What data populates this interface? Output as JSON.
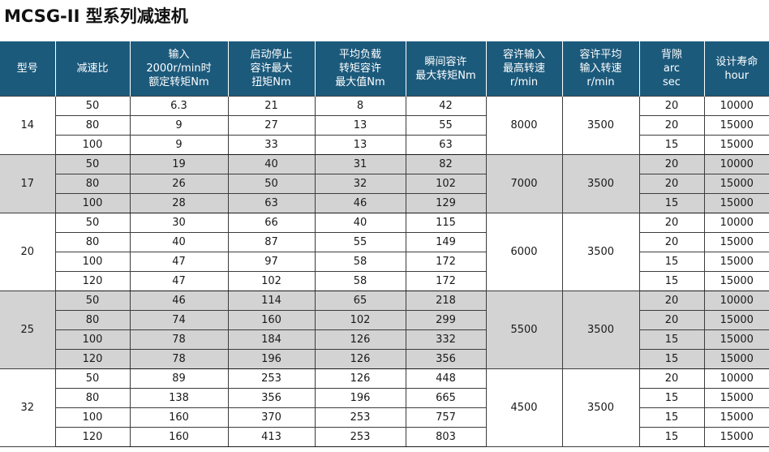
{
  "title": "MCSG-II 型系列减速机",
  "headers": [
    [
      "型号"
    ],
    [
      "减速比"
    ],
    [
      "输入",
      "2000r/min时",
      "额定转矩Nm"
    ],
    [
      "启动停止",
      "容许最大",
      "扭矩Nm"
    ],
    [
      "平均负载",
      "转矩容许",
      "最大值Nm"
    ],
    [
      "瞬间容许",
      "最大转矩Nm"
    ],
    [
      "容许输入",
      "最高转速",
      "r/min"
    ],
    [
      "容许平均",
      "输入转速",
      "r/min"
    ],
    [
      "背隙",
      "arc",
      "sec"
    ],
    [
      "设计寿命",
      "hour"
    ]
  ],
  "groups": [
    {
      "model": "14",
      "max_speed": "8000",
      "avg_speed": "3500",
      "shaded": false,
      "rows": [
        {
          "ratio": "50",
          "rated": "6.3",
          "start_stop": "21",
          "avg_load": "8",
          "instant": "42",
          "backlash": "20",
          "life": "10000"
        },
        {
          "ratio": "80",
          "rated": "9",
          "start_stop": "27",
          "avg_load": "13",
          "instant": "55",
          "backlash": "20",
          "life": "15000"
        },
        {
          "ratio": "100",
          "rated": "9",
          "start_stop": "33",
          "avg_load": "13",
          "instant": "63",
          "backlash": "15",
          "life": "15000"
        }
      ]
    },
    {
      "model": "17",
      "max_speed": "7000",
      "avg_speed": "3500",
      "shaded": true,
      "rows": [
        {
          "ratio": "50",
          "rated": "19",
          "start_stop": "40",
          "avg_load": "31",
          "instant": "82",
          "backlash": "20",
          "life": "10000"
        },
        {
          "ratio": "80",
          "rated": "26",
          "start_stop": "50",
          "avg_load": "32",
          "instant": "102",
          "backlash": "20",
          "life": "15000"
        },
        {
          "ratio": "100",
          "rated": "28",
          "start_stop": "63",
          "avg_load": "46",
          "instant": "129",
          "backlash": "15",
          "life": "15000"
        }
      ]
    },
    {
      "model": "20",
      "max_speed": "6000",
      "avg_speed": "3500",
      "shaded": false,
      "rows": [
        {
          "ratio": "50",
          "rated": "30",
          "start_stop": "66",
          "avg_load": "40",
          "instant": "115",
          "backlash": "20",
          "life": "10000"
        },
        {
          "ratio": "80",
          "rated": "40",
          "start_stop": "87",
          "avg_load": "55",
          "instant": "149",
          "backlash": "20",
          "life": "15000"
        },
        {
          "ratio": "100",
          "rated": "47",
          "start_stop": "97",
          "avg_load": "58",
          "instant": "172",
          "backlash": "15",
          "life": "15000"
        },
        {
          "ratio": "120",
          "rated": "47",
          "start_stop": "102",
          "avg_load": "58",
          "instant": "172",
          "backlash": "15",
          "life": "15000"
        }
      ]
    },
    {
      "model": "25",
      "max_speed": "5500",
      "avg_speed": "3500",
      "shaded": true,
      "rows": [
        {
          "ratio": "50",
          "rated": "46",
          "start_stop": "114",
          "avg_load": "65",
          "instant": "218",
          "backlash": "20",
          "life": "10000"
        },
        {
          "ratio": "80",
          "rated": "74",
          "start_stop": "160",
          "avg_load": "102",
          "instant": "299",
          "backlash": "20",
          "life": "15000"
        },
        {
          "ratio": "100",
          "rated": "78",
          "start_stop": "184",
          "avg_load": "126",
          "instant": "332",
          "backlash": "15",
          "life": "15000"
        },
        {
          "ratio": "120",
          "rated": "78",
          "start_stop": "196",
          "avg_load": "126",
          "instant": "356",
          "backlash": "15",
          "life": "15000"
        }
      ]
    },
    {
      "model": "32",
      "max_speed": "4500",
      "avg_speed": "3500",
      "shaded": false,
      "rows": [
        {
          "ratio": "50",
          "rated": "89",
          "start_stop": "253",
          "avg_load": "126",
          "instant": "448",
          "backlash": "20",
          "life": "10000"
        },
        {
          "ratio": "80",
          "rated": "138",
          "start_stop": "356",
          "avg_load": "196",
          "instant": "665",
          "backlash": "15",
          "life": "15000"
        },
        {
          "ratio": "100",
          "rated": "160",
          "start_stop": "370",
          "avg_load": "253",
          "instant": "757",
          "backlash": "15",
          "life": "15000"
        },
        {
          "ratio": "120",
          "rated": "160",
          "start_stop": "413",
          "avg_load": "253",
          "instant": "803",
          "backlash": "15",
          "life": "15000"
        }
      ]
    }
  ]
}
